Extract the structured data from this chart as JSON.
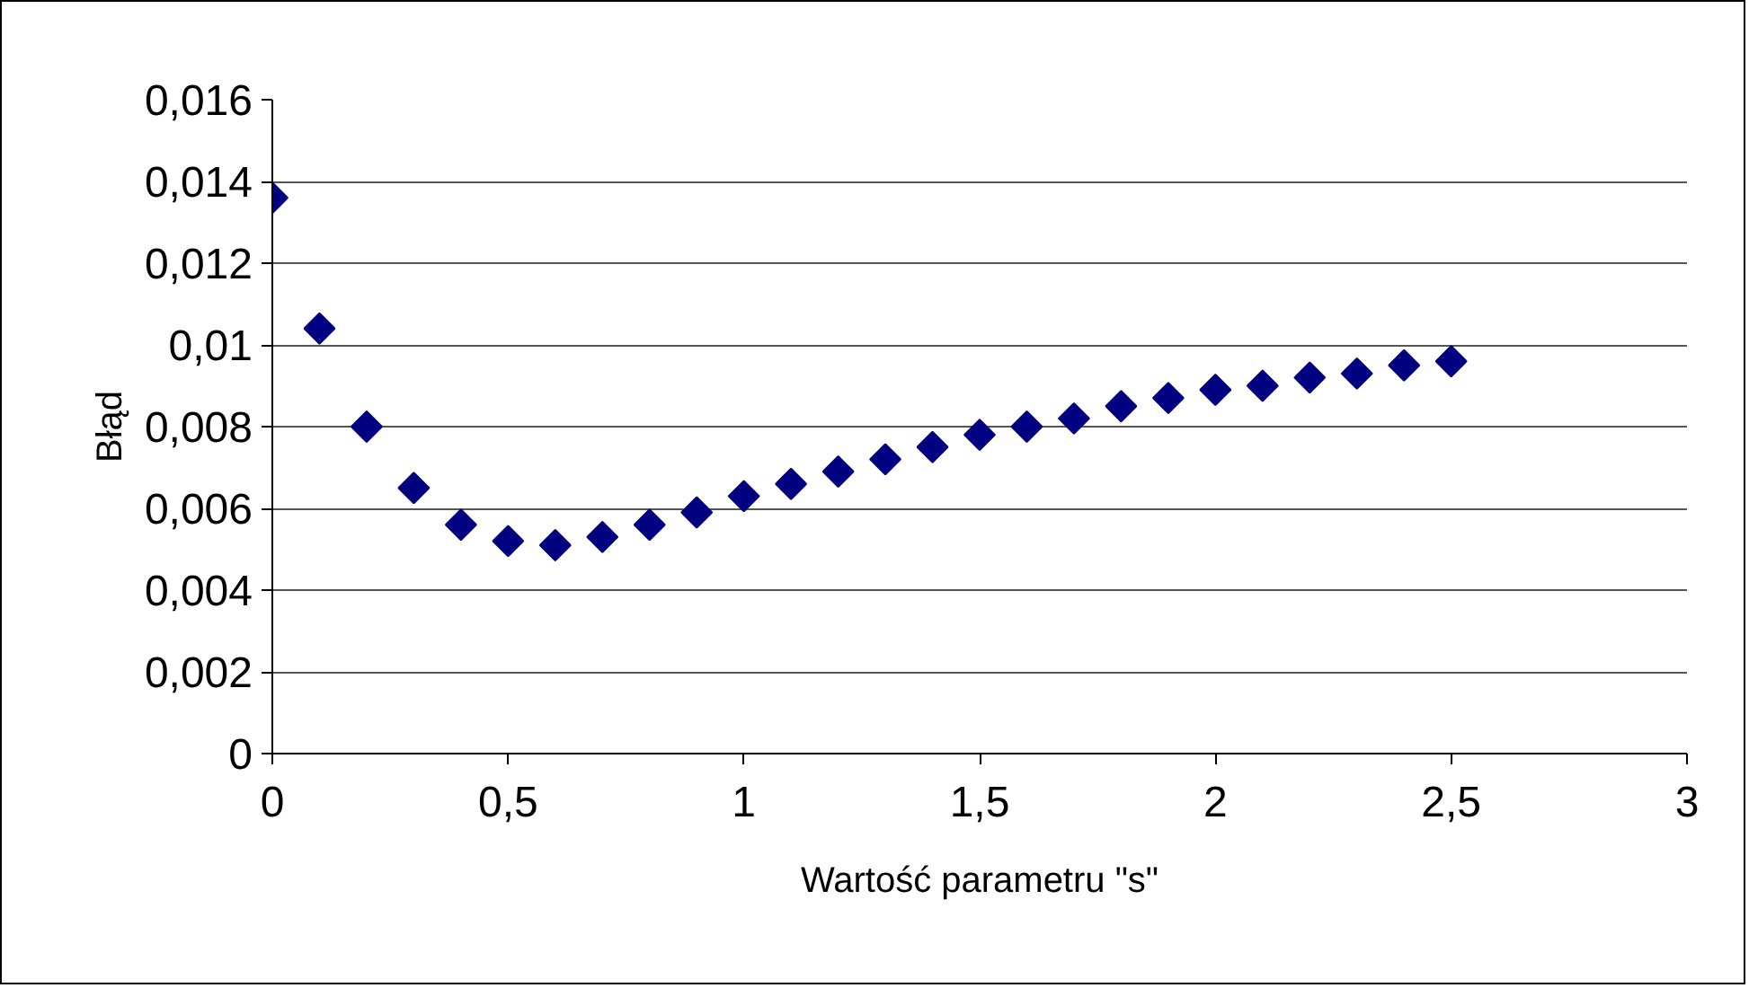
{
  "chart_data": {
    "type": "scatter",
    "xlabel": "Wartość parametru \"s\"",
    "ylabel": "Błąd",
    "x": [
      0,
      0.1,
      0.2,
      0.3,
      0.4,
      0.5,
      0.6,
      0.7,
      0.8,
      0.9,
      1.0,
      1.1,
      1.2,
      1.3,
      1.4,
      1.5,
      1.6,
      1.7,
      1.8,
      1.9,
      2.0,
      2.1,
      2.2,
      2.3,
      2.4,
      2.5
    ],
    "series": [
      {
        "color": "#000080",
        "values": [
          0.0136,
          0.0104,
          0.008,
          0.0065,
          0.0056,
          0.0052,
          0.0051,
          0.0053,
          0.0056,
          0.0059,
          0.0063,
          0.0066,
          0.0069,
          0.0072,
          0.0075,
          0.0078,
          0.008,
          0.0082,
          0.0085,
          0.0087,
          0.0089,
          0.009,
          0.0092,
          0.0093,
          0.0095,
          0.0096
        ]
      }
    ],
    "xlim": [
      0,
      3
    ],
    "ylim": [
      0,
      0.016
    ],
    "xticks": [
      0,
      {
        "value": 0.5,
        "label": "0,5"
      },
      1,
      {
        "value": 1.5,
        "label": "1,5"
      },
      2,
      {
        "value": 2.5,
        "label": "2,5"
      },
      3
    ],
    "yticks": [
      0,
      {
        "value": 0.002,
        "label": "0,002"
      },
      {
        "value": 0.004,
        "label": "0,004"
      },
      {
        "value": 0.006,
        "label": "0,006"
      },
      {
        "value": 0.008,
        "label": "0,008"
      },
      {
        "value": 0.01,
        "label": "0,01"
      },
      {
        "value": 0.012,
        "label": "0,012"
      },
      {
        "value": 0.014,
        "label": "0,014"
      },
      {
        "value": 0.016,
        "label": "0,016"
      }
    ],
    "grid": "y",
    "marker": "diamond"
  }
}
